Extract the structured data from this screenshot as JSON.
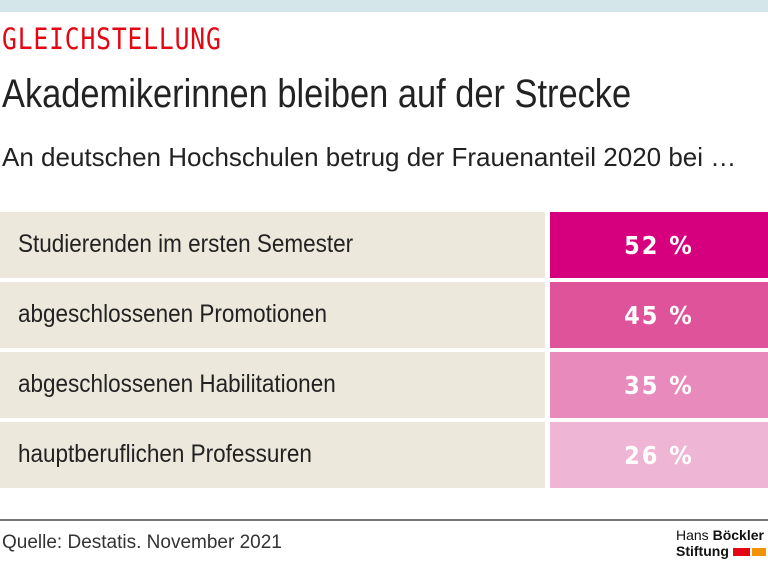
{
  "kicker": "GLEICHSTELLUNG",
  "title": "Akademikerinnen bleiben auf der Strecke",
  "subtitle": "An deutschen Hochschulen betrug der Frauenanteil 2020 bei …",
  "chart_data": {
    "type": "table",
    "categories": [
      "Studierenden im ersten Semester",
      "abgeschlossenen Promotionen",
      "abgeschlossenen Habilitationen",
      "hauptberuflichen Professuren"
    ],
    "values": [
      52,
      45,
      35,
      26
    ],
    "value_labels": [
      "52 %",
      "45 %",
      "35 %",
      "26 %"
    ],
    "colors": [
      "#d6007e",
      "#de5399",
      "#e88abb",
      "#efb5d4"
    ]
  },
  "source": "Quelle: Destatis. November 2021",
  "logo": {
    "line1a": "Hans ",
    "line1b": "Böckler",
    "line2": "Stiftung"
  }
}
